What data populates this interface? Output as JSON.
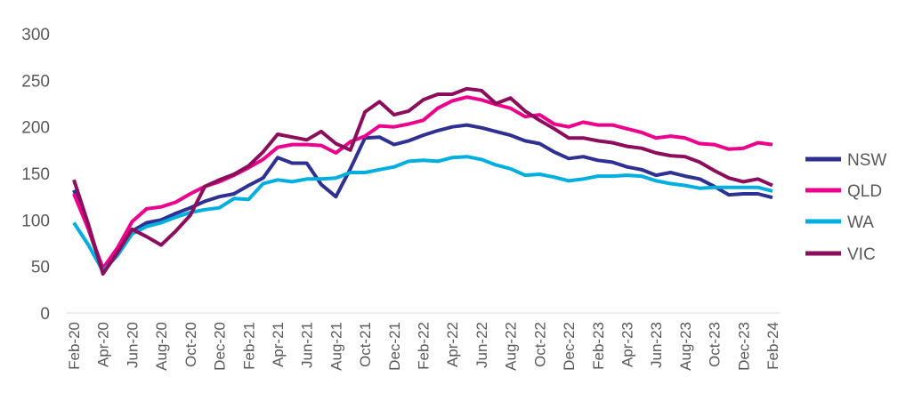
{
  "chart_data": {
    "type": "line",
    "title": "",
    "xlabel": "",
    "ylabel": "",
    "ylim": [
      0,
      300
    ],
    "yticks": [
      "0",
      "50",
      "100",
      "150",
      "200",
      "250",
      "300"
    ],
    "grid": false,
    "legend_position": "right",
    "x": [
      "Feb-20",
      "Mar-20",
      "Apr-20",
      "May-20",
      "Jun-20",
      "Jul-20",
      "Aug-20",
      "Sep-20",
      "Oct-20",
      "Nov-20",
      "Dec-20",
      "Jan-21",
      "Feb-21",
      "Mar-21",
      "Apr-21",
      "May-21",
      "Jun-21",
      "Jul-21",
      "Aug-21",
      "Sep-21",
      "Oct-21",
      "Nov-21",
      "Dec-21",
      "Jan-22",
      "Feb-22",
      "Mar-22",
      "Apr-22",
      "May-22",
      "Jun-22",
      "Jul-22",
      "Aug-22",
      "Sep-22",
      "Oct-22",
      "Nov-22",
      "Dec-22",
      "Jan-23",
      "Feb-23",
      "Mar-23",
      "Apr-23",
      "May-23",
      "Jun-23",
      "Jul-23",
      "Aug-23",
      "Sep-23",
      "Oct-23",
      "Nov-23",
      "Dec-23",
      "Jan-24",
      "Feb-24"
    ],
    "xtick_labels": [
      "Feb-20",
      "Apr-20",
      "Jun-20",
      "Aug-20",
      "Oct-20",
      "Dec-20",
      "Feb-21",
      "Apr-21",
      "Jun-21",
      "Aug-21",
      "Oct-21",
      "Dec-21",
      "Feb-22",
      "Apr-22",
      "Jun-22",
      "Aug-22",
      "Oct-22",
      "Dec-22",
      "Feb-23",
      "Apr-23",
      "Jun-23",
      "Aug-23",
      "Oct-23",
      "Dec-23",
      "Feb-24"
    ],
    "series": [
      {
        "name": "NSW",
        "color": "#2e3192",
        "values": [
          132,
          90,
          45,
          65,
          88,
          97,
          100,
          107,
          113,
          120,
          125,
          128,
          137,
          145,
          167,
          161,
          161,
          138,
          125,
          155,
          188,
          189,
          181,
          185,
          191,
          196,
          200,
          202,
          199,
          195,
          191,
          185,
          182,
          173,
          166,
          168,
          164,
          162,
          157,
          154,
          148,
          151,
          147,
          144,
          136,
          127,
          128,
          128,
          124
        ]
      },
      {
        "name": "QLD",
        "color": "#ec008c",
        "values": [
          128,
          90,
          48,
          70,
          98,
          112,
          114,
          119,
          128,
          136,
          141,
          148,
          156,
          165,
          178,
          181,
          181,
          180,
          172,
          184,
          190,
          201,
          200,
          203,
          207,
          220,
          228,
          232,
          229,
          224,
          220,
          211,
          213,
          203,
          200,
          205,
          202,
          202,
          198,
          194,
          188,
          190,
          188,
          182,
          181,
          176,
          177,
          183,
          181
        ]
      },
      {
        "name": "WA",
        "color": "#00aee0",
        "values": [
          97,
          73,
          45,
          62,
          85,
          93,
          97,
          103,
          108,
          111,
          113,
          123,
          122,
          139,
          143,
          141,
          144,
          144,
          145,
          151,
          151,
          154,
          157,
          163,
          164,
          163,
          167,
          168,
          165,
          159,
          155,
          148,
          149,
          146,
          142,
          144,
          147,
          147,
          148,
          147,
          142,
          139,
          137,
          134,
          135,
          135,
          135,
          135,
          131
        ]
      },
      {
        "name": "VIC",
        "color": "#8b0d5b",
        "values": [
          143,
          95,
          42,
          65,
          90,
          82,
          73,
          88,
          105,
          136,
          143,
          149,
          158,
          173,
          192,
          189,
          186,
          195,
          182,
          175,
          216,
          227,
          213,
          217,
          229,
          235,
          235,
          241,
          239,
          225,
          231,
          217,
          207,
          198,
          188,
          188,
          185,
          183,
          179,
          177,
          172,
          169,
          168,
          162,
          153,
          145,
          141,
          144,
          137
        ]
      }
    ]
  }
}
